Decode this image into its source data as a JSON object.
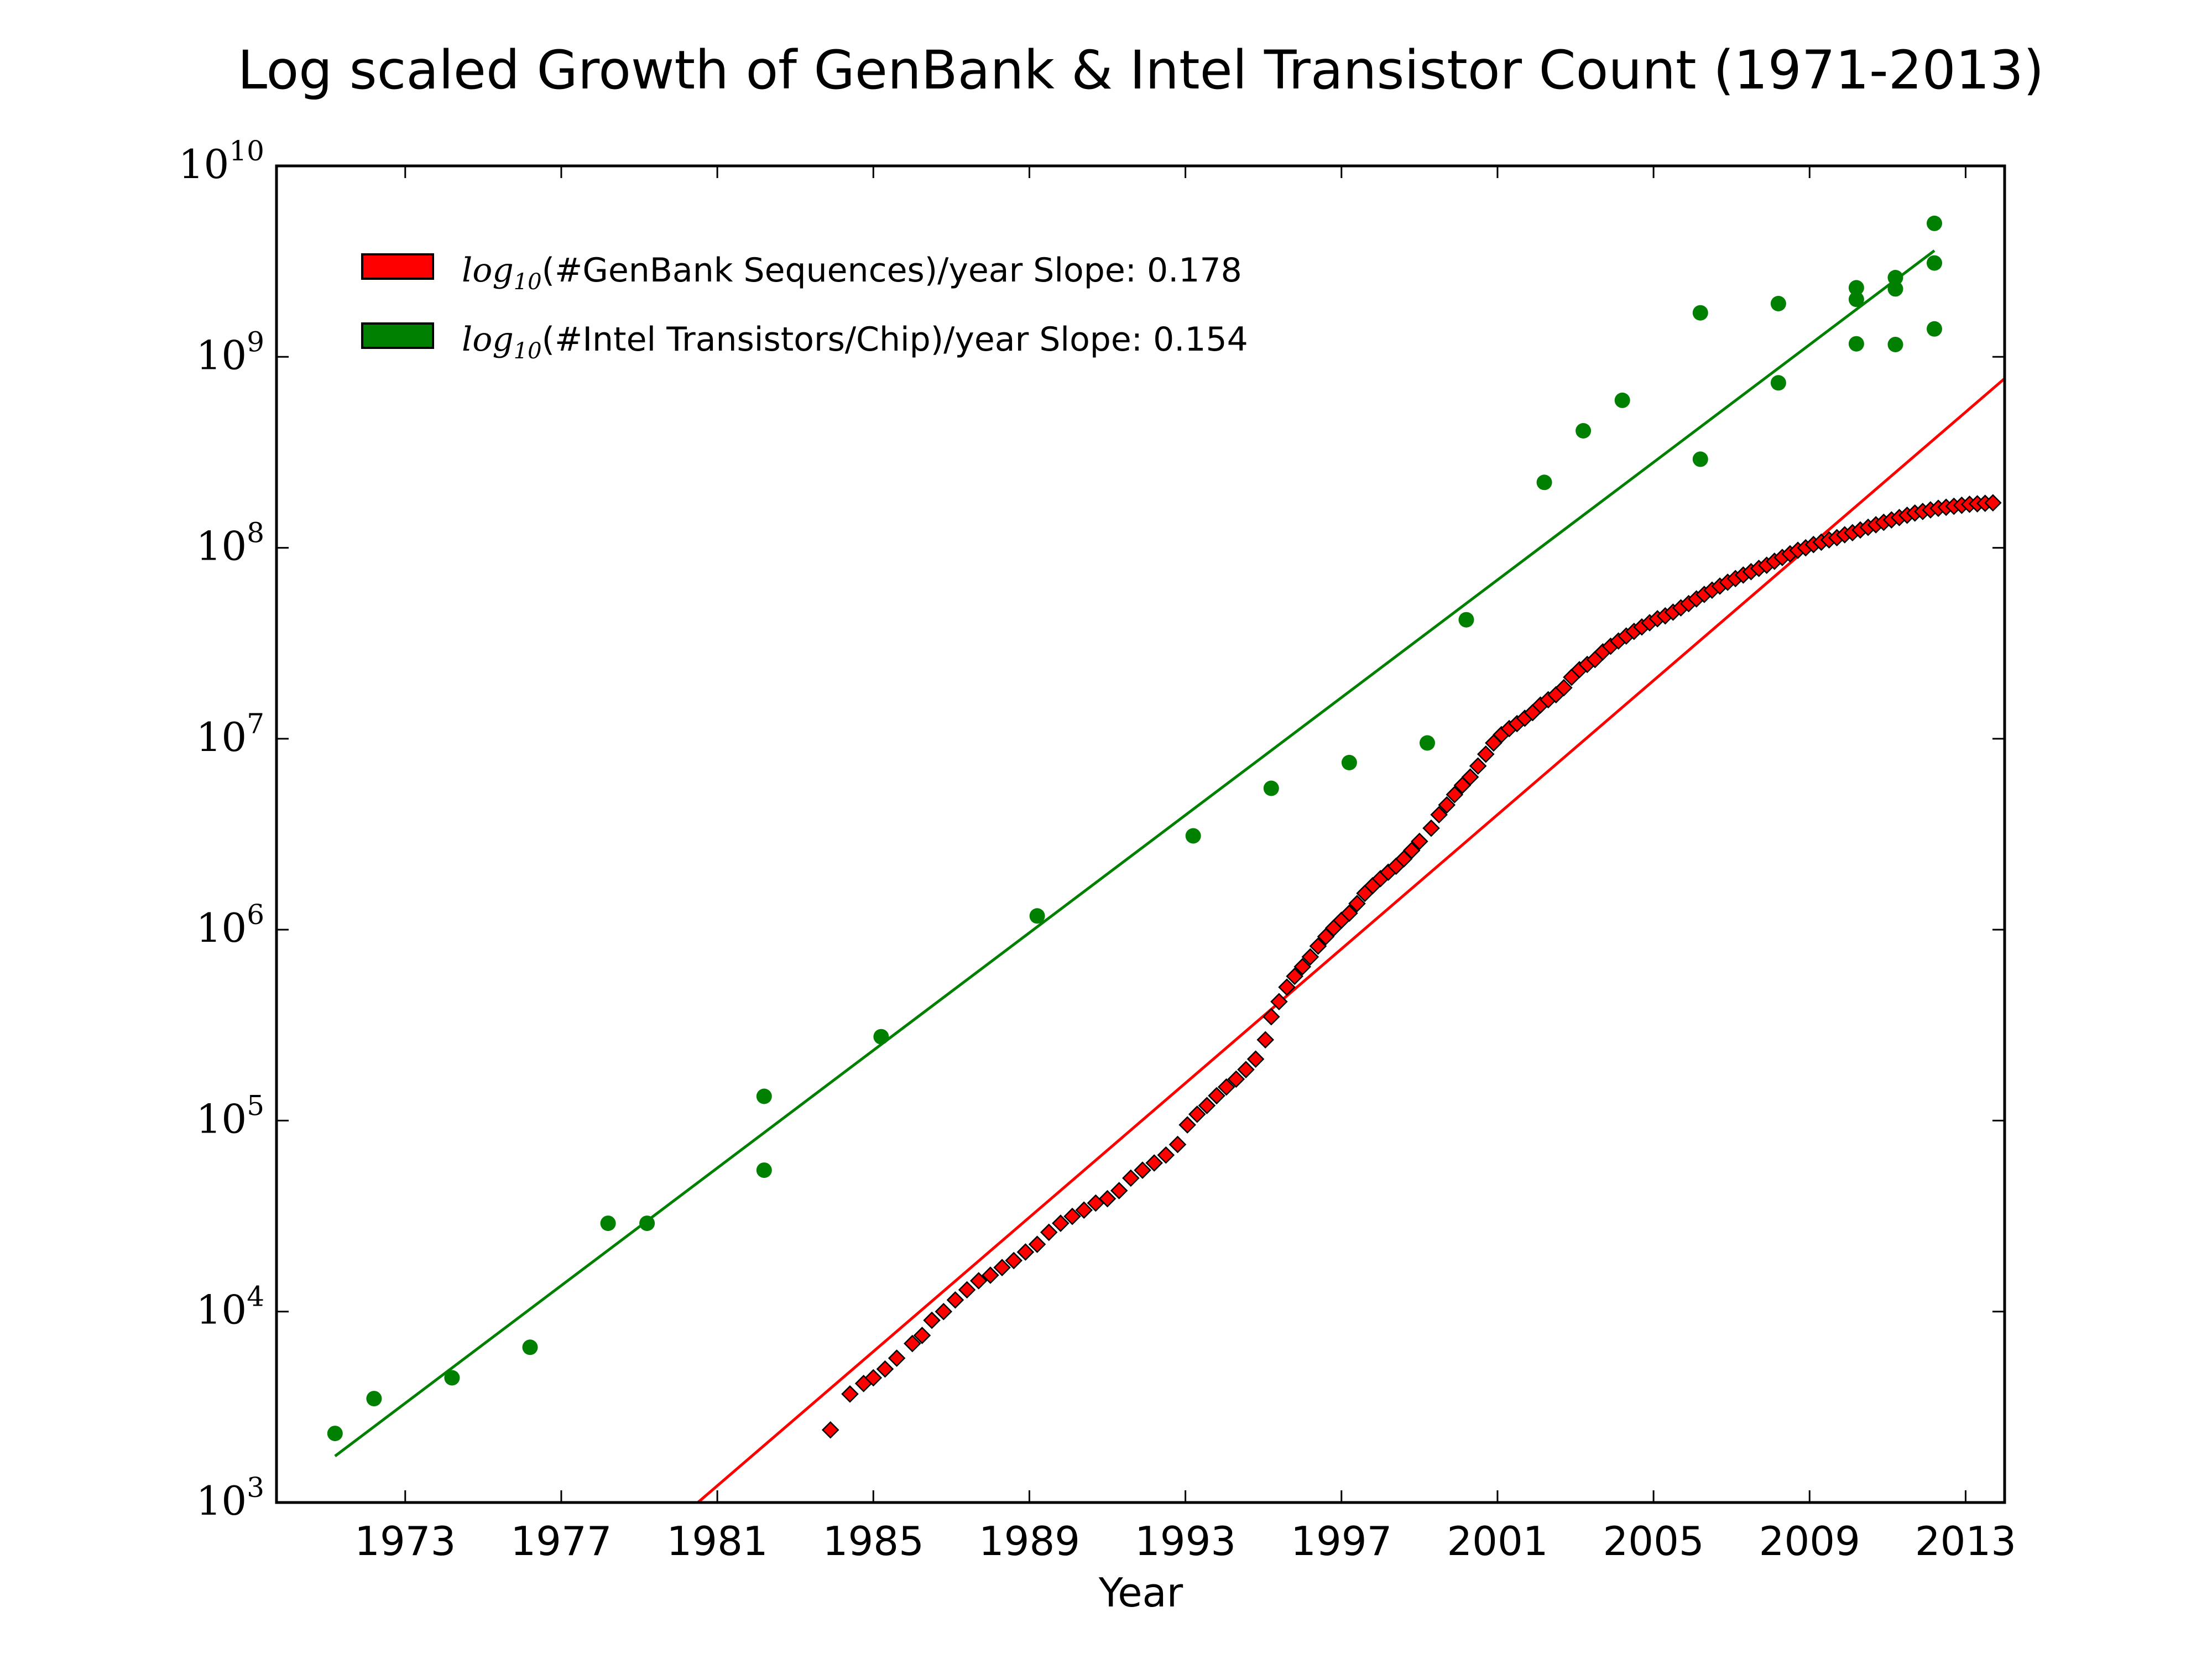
{
  "chart_data": {
    "type": "scatter",
    "title": "Log scaled Growth of GenBank & Intel Transistor Count (1971-2013)",
    "xlabel": "Year",
    "ylabel": "",
    "xlim": [
      1969.7,
      2014.0
    ],
    "ylim": [
      1000,
      10000000000
    ],
    "y_scale": "log",
    "x_ticks": [
      1973,
      1977,
      1981,
      1985,
      1989,
      1993,
      1997,
      2001,
      2005,
      2009,
      2013
    ],
    "x_tick_labels": [
      "1973",
      "1977",
      "1981",
      "1985",
      "1989",
      "1993",
      "1997",
      "2001",
      "2005",
      "2009",
      "2013"
    ],
    "y_ticks": [
      1000,
      10000,
      100000,
      1000000,
      10000000,
      100000000,
      1000000000,
      10000000000
    ],
    "y_tick_base": "10",
    "y_tick_exponents": [
      "3",
      "4",
      "5",
      "6",
      "7",
      "8",
      "9",
      "10"
    ],
    "grid": false,
    "legend_position": "top-left",
    "legend": [
      {
        "prefix": "log",
        "sub": "10",
        "text": "(#GenBank Sequences)/year Slope: 0.178",
        "color": "#ff0000"
      },
      {
        "prefix": "log",
        "sub": "10",
        "text": "(#Intel Transistors/Chip)/year Slope: 0.154",
        "color": "#008000"
      }
    ],
    "series": [
      {
        "marker": "diamond",
        "color": "#ff0000",
        "points": [
          [
            1983.9,
            2400
          ],
          [
            1984.4,
            3700
          ],
          [
            1984.75,
            4200
          ],
          [
            1985.0,
            4500
          ],
          [
            1985.3,
            5000
          ],
          [
            1985.6,
            5700
          ],
          [
            1986.0,
            6800
          ],
          [
            1986.25,
            7500
          ],
          [
            1986.5,
            9000
          ],
          [
            1986.8,
            10000
          ],
          [
            1987.1,
            11500
          ],
          [
            1987.4,
            13000
          ],
          [
            1987.7,
            14500
          ],
          [
            1988.0,
            15500
          ],
          [
            1988.3,
            17000
          ],
          [
            1988.6,
            18500
          ],
          [
            1988.9,
            20500
          ],
          [
            1989.2,
            22500
          ],
          [
            1989.5,
            26000
          ],
          [
            1989.8,
            29000
          ],
          [
            1990.1,
            31500
          ],
          [
            1990.4,
            34000
          ],
          [
            1990.7,
            37000
          ],
          [
            1991.0,
            39000
          ],
          [
            1991.3,
            43000
          ],
          [
            1991.6,
            50000
          ],
          [
            1991.9,
            55000
          ],
          [
            1992.2,
            60000
          ],
          [
            1992.5,
            66000
          ],
          [
            1992.8,
            75000
          ],
          [
            1993.05,
            95000
          ],
          [
            1993.3,
            108000
          ],
          [
            1993.55,
            120000
          ],
          [
            1993.8,
            135000
          ],
          [
            1994.05,
            150000
          ],
          [
            1994.3,
            165000
          ],
          [
            1994.55,
            185000
          ],
          [
            1994.8,
            210000
          ],
          [
            1995.05,
            265000
          ],
          [
            1995.2,
            350000
          ],
          [
            1995.4,
            420000
          ],
          [
            1995.6,
            500000
          ],
          [
            1995.8,
            570000
          ],
          [
            1996.0,
            640000
          ],
          [
            1996.2,
            720000
          ],
          [
            1996.4,
            820000
          ],
          [
            1996.6,
            920000
          ],
          [
            1996.8,
            1020000
          ],
          [
            1997.0,
            1120000
          ],
          [
            1997.2,
            1220000
          ],
          [
            1997.4,
            1370000
          ],
          [
            1997.6,
            1550000
          ],
          [
            1997.8,
            1700000
          ],
          [
            1998.0,
            1850000
          ],
          [
            1998.2,
            2000000
          ],
          [
            1998.4,
            2150000
          ],
          [
            1998.6,
            2350000
          ],
          [
            1998.8,
            2600000
          ],
          [
            1999.0,
            2900000
          ],
          [
            1999.3,
            3400000
          ],
          [
            1999.5,
            4000000
          ],
          [
            1999.7,
            4500000
          ],
          [
            1999.9,
            5100000
          ],
          [
            2000.1,
            5700000
          ],
          [
            2000.3,
            6300000
          ],
          [
            2000.5,
            7200000
          ],
          [
            2000.7,
            8300000
          ],
          [
            2000.9,
            9500000
          ],
          [
            2001.1,
            10500000
          ],
          [
            2001.3,
            11300000
          ],
          [
            2001.5,
            12000000
          ],
          [
            2001.7,
            12800000
          ],
          [
            2001.9,
            13700000
          ],
          [
            2002.1,
            15000000
          ],
          [
            2002.3,
            16000000
          ],
          [
            2002.5,
            17000000
          ],
          [
            2002.7,
            18500000
          ],
          [
            2002.9,
            21000000
          ],
          [
            2003.1,
            23000000
          ],
          [
            2003.3,
            24500000
          ],
          [
            2003.5,
            26000000
          ],
          [
            2003.7,
            28500000
          ],
          [
            2003.9,
            30500000
          ],
          [
            2004.1,
            32500000
          ],
          [
            2004.3,
            34500000
          ],
          [
            2004.5,
            36500000
          ],
          [
            2004.7,
            38500000
          ],
          [
            2004.9,
            40500000
          ],
          [
            2005.1,
            42500000
          ],
          [
            2005.3,
            44000000
          ],
          [
            2005.5,
            46000000
          ],
          [
            2005.7,
            48500000
          ],
          [
            2005.9,
            51000000
          ],
          [
            2006.1,
            54000000
          ],
          [
            2006.3,
            57000000
          ],
          [
            2006.5,
            60000000
          ],
          [
            2006.7,
            63000000
          ],
          [
            2006.9,
            66000000
          ],
          [
            2007.1,
            69000000
          ],
          [
            2007.3,
            72000000
          ],
          [
            2007.5,
            75000000
          ],
          [
            2007.7,
            78000000
          ],
          [
            2007.9,
            81000000
          ],
          [
            2008.1,
            85000000
          ],
          [
            2008.3,
            89000000
          ],
          [
            2008.5,
            93000000
          ],
          [
            2008.7,
            97000000
          ],
          [
            2008.9,
            100000000
          ],
          [
            2009.1,
            104000000
          ],
          [
            2009.3,
            107000000
          ],
          [
            2009.5,
            110000000
          ],
          [
            2009.7,
            113000000
          ],
          [
            2009.9,
            117000000
          ],
          [
            2010.1,
            120000000
          ],
          [
            2010.3,
            124000000
          ],
          [
            2010.5,
            128000000
          ],
          [
            2010.7,
            132000000
          ],
          [
            2010.9,
            136000000
          ],
          [
            2011.1,
            140000000
          ],
          [
            2011.3,
            144000000
          ],
          [
            2011.5,
            148000000
          ],
          [
            2011.7,
            152000000
          ],
          [
            2011.9,
            155000000
          ],
          [
            2012.1,
            158000000
          ],
          [
            2012.3,
            161000000
          ],
          [
            2012.5,
            163000000
          ],
          [
            2012.7,
            165000000
          ],
          [
            2012.9,
            167000000
          ],
          [
            2013.1,
            169000000
          ],
          [
            2013.3,
            170000000
          ],
          [
            2013.5,
            171000000
          ],
          [
            2013.7,
            172000000
          ]
        ],
        "fit_line": [
          [
            1980.5,
            1000
          ],
          [
            2014.0,
            770000000
          ]
        ]
      },
      {
        "marker": "circle",
        "color": "#008000",
        "points": [
          [
            1971.2,
            2300
          ],
          [
            1972.2,
            3500
          ],
          [
            1974.2,
            4500
          ],
          [
            1976.2,
            6500
          ],
          [
            1978.2,
            29000
          ],
          [
            1979.2,
            29000
          ],
          [
            1982.2,
            134000
          ],
          [
            1982.2,
            55000
          ],
          [
            1985.2,
            275000
          ],
          [
            1989.2,
            1180000
          ],
          [
            1993.2,
            3100000
          ],
          [
            1995.2,
            5500000
          ],
          [
            1997.2,
            7500000
          ],
          [
            1999.2,
            9500000
          ],
          [
            2000.2,
            42000000
          ],
          [
            2002.2,
            220000000
          ],
          [
            2003.2,
            410000000
          ],
          [
            2004.2,
            592000000
          ],
          [
            2006.2,
            1700000000
          ],
          [
            2006.2,
            291000000
          ],
          [
            2008.2,
            1900000000
          ],
          [
            2008.2,
            731000000
          ],
          [
            2010.2,
            2300000000
          ],
          [
            2010.2,
            2000000000
          ],
          [
            2010.2,
            1170000000
          ],
          [
            2011.2,
            2600000000
          ],
          [
            2011.2,
            2270000000
          ],
          [
            2011.2,
            1160000000
          ],
          [
            2012.2,
            5000000000
          ],
          [
            2012.2,
            3100000000
          ],
          [
            2012.2,
            1400000000
          ]
        ],
        "fit_line": [
          [
            1971.2,
            1750
          ],
          [
            2012.2,
            3600000000
          ]
        ]
      }
    ]
  }
}
